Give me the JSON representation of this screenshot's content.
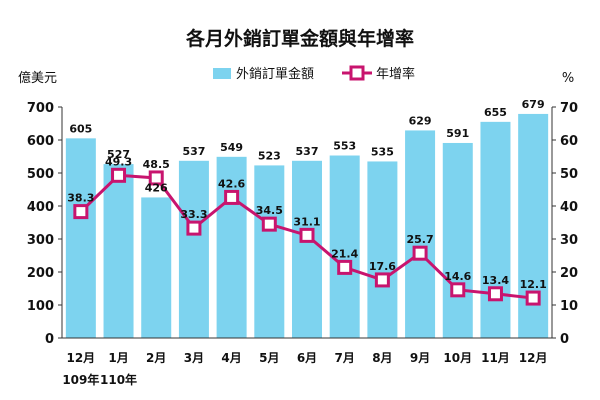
{
  "chart_data": {
    "type": "bar+line",
    "title": "各月外銷訂單金額與年增率",
    "categories": [
      "12月",
      "1月",
      "2月",
      "3月",
      "4月",
      "5月",
      "6月",
      "7月",
      "8月",
      "9月",
      "10月",
      "11月",
      "12月"
    ],
    "year_labels": [
      {
        "index": 0,
        "text": "109年"
      },
      {
        "index": 1,
        "text": "110年"
      }
    ],
    "series": [
      {
        "name": "外銷訂單金額",
        "type": "bar",
        "axis": "left",
        "color": "#7dd3ef",
        "values": [
          605,
          527,
          426,
          537,
          549,
          523,
          537,
          553,
          535,
          629,
          591,
          655,
          679
        ]
      },
      {
        "name": "年增率",
        "type": "line",
        "axis": "right",
        "color": "#c8146e",
        "values": [
          38.3,
          49.3,
          48.5,
          33.3,
          42.6,
          34.5,
          31.1,
          21.4,
          17.6,
          25.7,
          14.6,
          13.4,
          12.1
        ]
      }
    ],
    "left_axis": {
      "unit": "億美元",
      "min": 0,
      "max": 700,
      "ticks": [
        0,
        100,
        200,
        300,
        400,
        500,
        600,
        700
      ]
    },
    "right_axis": {
      "unit": "%",
      "min": 0,
      "max": 70,
      "ticks": [
        0,
        10,
        20,
        30,
        40,
        50,
        60,
        70
      ]
    },
    "legend_position": "top",
    "grid": false
  }
}
